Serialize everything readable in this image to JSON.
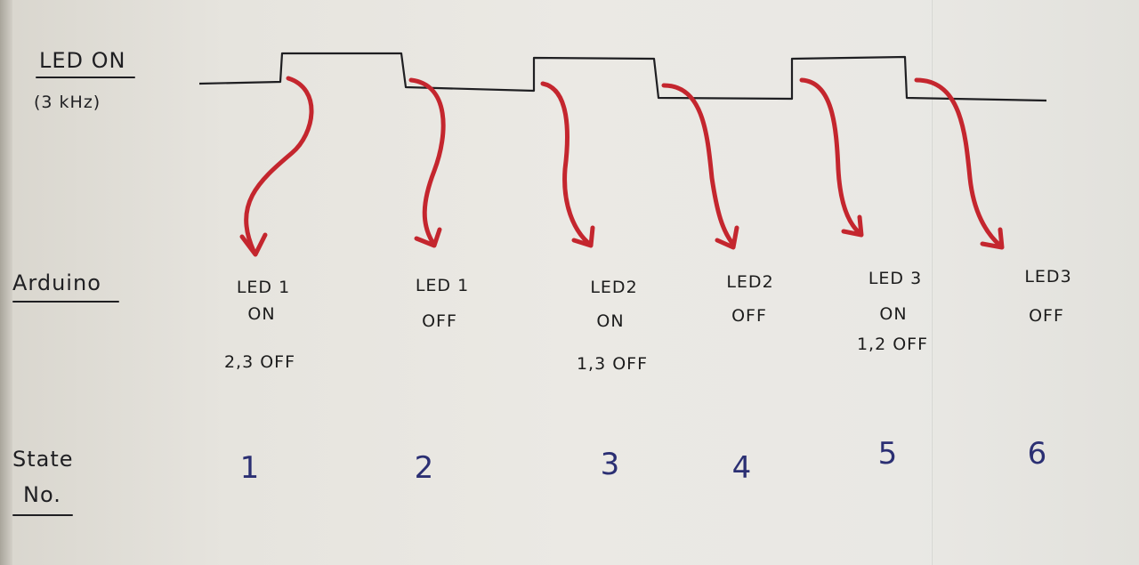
{
  "waveform": {
    "label": "LED ON",
    "frequency": "(3 kHz)"
  },
  "arduino": {
    "row_label": "Arduino",
    "events": [
      {
        "led": "LED 1",
        "state": "ON",
        "others": "2,3 OFF"
      },
      {
        "led": "LED 1",
        "state": "OFF",
        "others": ""
      },
      {
        "led": "LED2",
        "state": "ON",
        "others": "1,3 OFF"
      },
      {
        "led": "LED2",
        "state": "OFF",
        "others": ""
      },
      {
        "led": "LED 3",
        "state": "ON",
        "others": "1,2 OFF"
      },
      {
        "led": "LED3",
        "state": "OFF",
        "others": ""
      }
    ]
  },
  "states": {
    "row_label_line1": "State",
    "row_label_line2": "No.",
    "numbers": [
      "1",
      "2",
      "3",
      "4",
      "5",
      "6"
    ]
  },
  "colors": {
    "arrow": "#c4262e",
    "pencil": "#1f1f22",
    "blue_ink": "#2b2f73"
  }
}
